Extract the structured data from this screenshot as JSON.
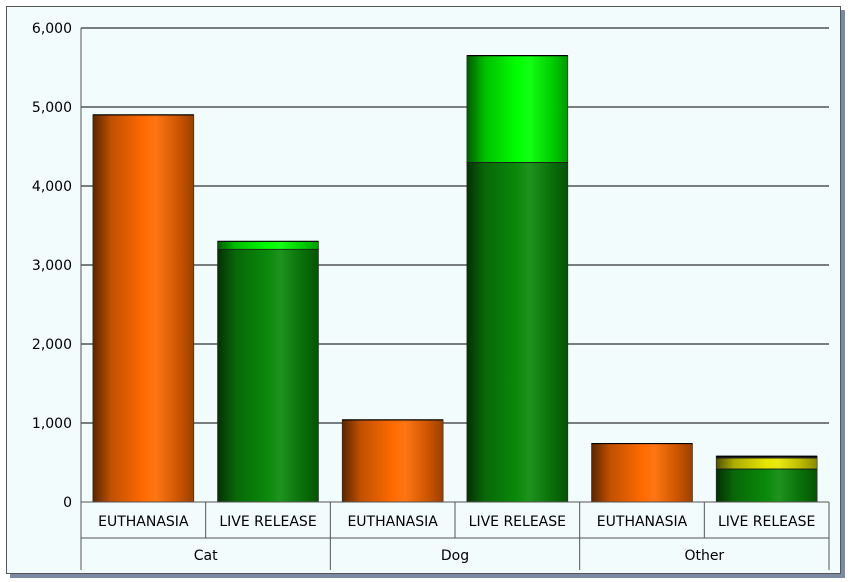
{
  "colors": {
    "background": "#f2fcfd",
    "gridline": "#000000",
    "euthanasia": "#ff6a00",
    "live_release_base": "#0a8a0a",
    "live_release_top": "#00ff00",
    "live_release_other": "#e6e600"
  },
  "chart_data": {
    "type": "bar",
    "stacked": true,
    "ylim": [
      0,
      6000
    ],
    "yticks": [
      0,
      1000,
      2000,
      3000,
      4000,
      5000,
      6000
    ],
    "ytick_labels": [
      "0",
      "1,000",
      "2,000",
      "3,000",
      "4,000",
      "5,000",
      "6,000"
    ],
    "grid": true,
    "groups": [
      {
        "label": "Cat",
        "bars": [
          {
            "label": "EUTHANASIA",
            "segments": [
              {
                "value": 4900,
                "color": "#ff6a00"
              }
            ]
          },
          {
            "label": "LIVE RELEASE",
            "segments": [
              {
                "value": 3200,
                "color": "#0a8a0a"
              },
              {
                "value": 100,
                "color": "#00ff00"
              }
            ]
          }
        ]
      },
      {
        "label": "Dog",
        "bars": [
          {
            "label": "EUTHANASIA",
            "segments": [
              {
                "value": 1040,
                "color": "#ff6a00"
              }
            ]
          },
          {
            "label": "LIVE RELEASE",
            "segments": [
              {
                "value": 4300,
                "color": "#0a8a0a"
              },
              {
                "value": 1350,
                "color": "#00ff00"
              }
            ]
          }
        ]
      },
      {
        "label": "Other",
        "bars": [
          {
            "label": "EUTHANASIA",
            "segments": [
              {
                "value": 740,
                "color": "#ff6a00"
              }
            ]
          },
          {
            "label": "LIVE RELEASE",
            "segments": [
              {
                "value": 420,
                "color": "#0a8a0a"
              },
              {
                "value": 140,
                "color": "#e6e600"
              },
              {
                "value": 20,
                "color": "#1a1a1a"
              }
            ]
          }
        ]
      }
    ]
  }
}
